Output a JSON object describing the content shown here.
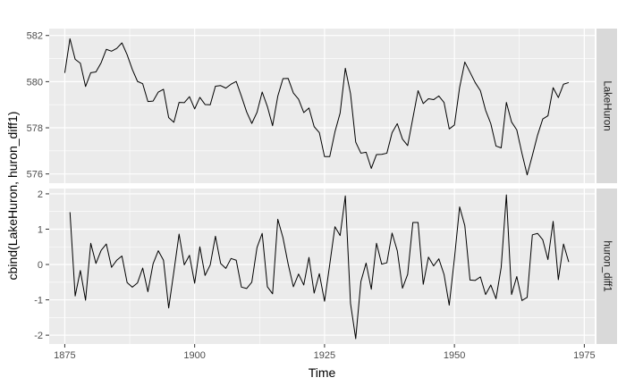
{
  "chart_data": {
    "type": "line",
    "xlabel": "Time",
    "ylabel": "cbind(LakeHuron, huron_diff1)",
    "x_ticks": [
      1875,
      1900,
      1925,
      1950,
      1975
    ],
    "xlim": [
      1872,
      1977
    ],
    "grid": true,
    "colors": {
      "panel_bg": "#ebebeb",
      "grid": "#ffffff",
      "strip_bg": "#d9d9d9",
      "line": "#000000"
    },
    "panels": [
      {
        "strip_label": "LakeHuron",
        "ylim": [
          575.6,
          582.3
        ],
        "y_ticks": [
          576,
          578,
          580,
          582
        ],
        "x_start": 1875,
        "values": [
          580.38,
          581.86,
          580.97,
          580.8,
          579.79,
          580.39,
          580.42,
          580.82,
          581.4,
          581.32,
          581.44,
          581.68,
          581.17,
          580.53,
          580.01,
          579.91,
          579.14,
          579.16,
          579.55,
          579.67,
          578.44,
          578.24,
          579.1,
          579.09,
          579.35,
          578.82,
          579.32,
          579.01,
          579.0,
          579.8,
          579.83,
          579.72,
          579.89,
          580.01,
          579.37,
          578.69,
          578.19,
          578.67,
          579.55,
          578.92,
          578.09,
          579.37,
          580.13,
          580.14,
          579.51,
          579.24,
          578.66,
          578.86,
          578.05,
          577.79,
          576.75,
          576.75,
          577.82,
          578.64,
          580.58,
          579.48,
          577.38,
          576.9,
          576.94,
          576.24,
          576.84,
          576.85,
          576.9,
          577.79,
          578.18,
          577.51,
          577.23,
          578.42,
          579.61,
          579.05,
          579.26,
          579.22,
          579.38,
          579.1,
          577.95,
          578.12,
          579.75,
          580.85,
          580.41,
          579.96,
          579.61,
          578.76,
          578.18,
          577.21,
          577.13,
          579.1,
          578.25,
          577.91,
          576.89,
          575.96,
          576.8,
          577.68,
          578.38,
          578.52,
          579.74,
          579.31,
          579.89,
          579.96
        ]
      },
      {
        "strip_label": "huron_diff1",
        "ylim": [
          -2.25,
          2.15
        ],
        "y_ticks": [
          -2,
          -1,
          0,
          1,
          2
        ],
        "x_start": 1876,
        "values": [
          1.48,
          -0.89,
          -0.17,
          -1.01,
          0.6,
          0.03,
          0.4,
          0.58,
          -0.08,
          0.12,
          0.24,
          -0.51,
          -0.64,
          -0.52,
          -0.1,
          -0.77,
          0.02,
          0.39,
          0.12,
          -1.23,
          -0.2,
          0.86,
          -0.01,
          0.26,
          -0.53,
          0.5,
          -0.31,
          -0.01,
          0.8,
          0.03,
          -0.11,
          0.17,
          0.12,
          -0.64,
          -0.68,
          -0.5,
          0.48,
          0.88,
          -0.63,
          -0.83,
          1.28,
          0.76,
          0.01,
          -0.63,
          -0.27,
          -0.58,
          0.2,
          -0.81,
          -0.26,
          -1.04,
          0.0,
          1.07,
          0.82,
          1.94,
          -1.1,
          -2.1,
          -0.48,
          0.04,
          -0.7,
          0.6,
          0.01,
          0.05,
          0.89,
          0.39,
          -0.67,
          -0.28,
          1.19,
          1.19,
          -0.56,
          0.21,
          -0.04,
          0.16,
          -0.28,
          -1.15,
          0.17,
          1.63,
          1.1,
          -0.44,
          -0.45,
          -0.35,
          -0.85,
          -0.58,
          -0.97,
          -0.08,
          1.97,
          -0.85,
          -0.34,
          -1.02,
          -0.93,
          0.84,
          0.88,
          0.7,
          0.14,
          1.22,
          -0.43,
          0.58,
          0.07
        ]
      }
    ]
  }
}
